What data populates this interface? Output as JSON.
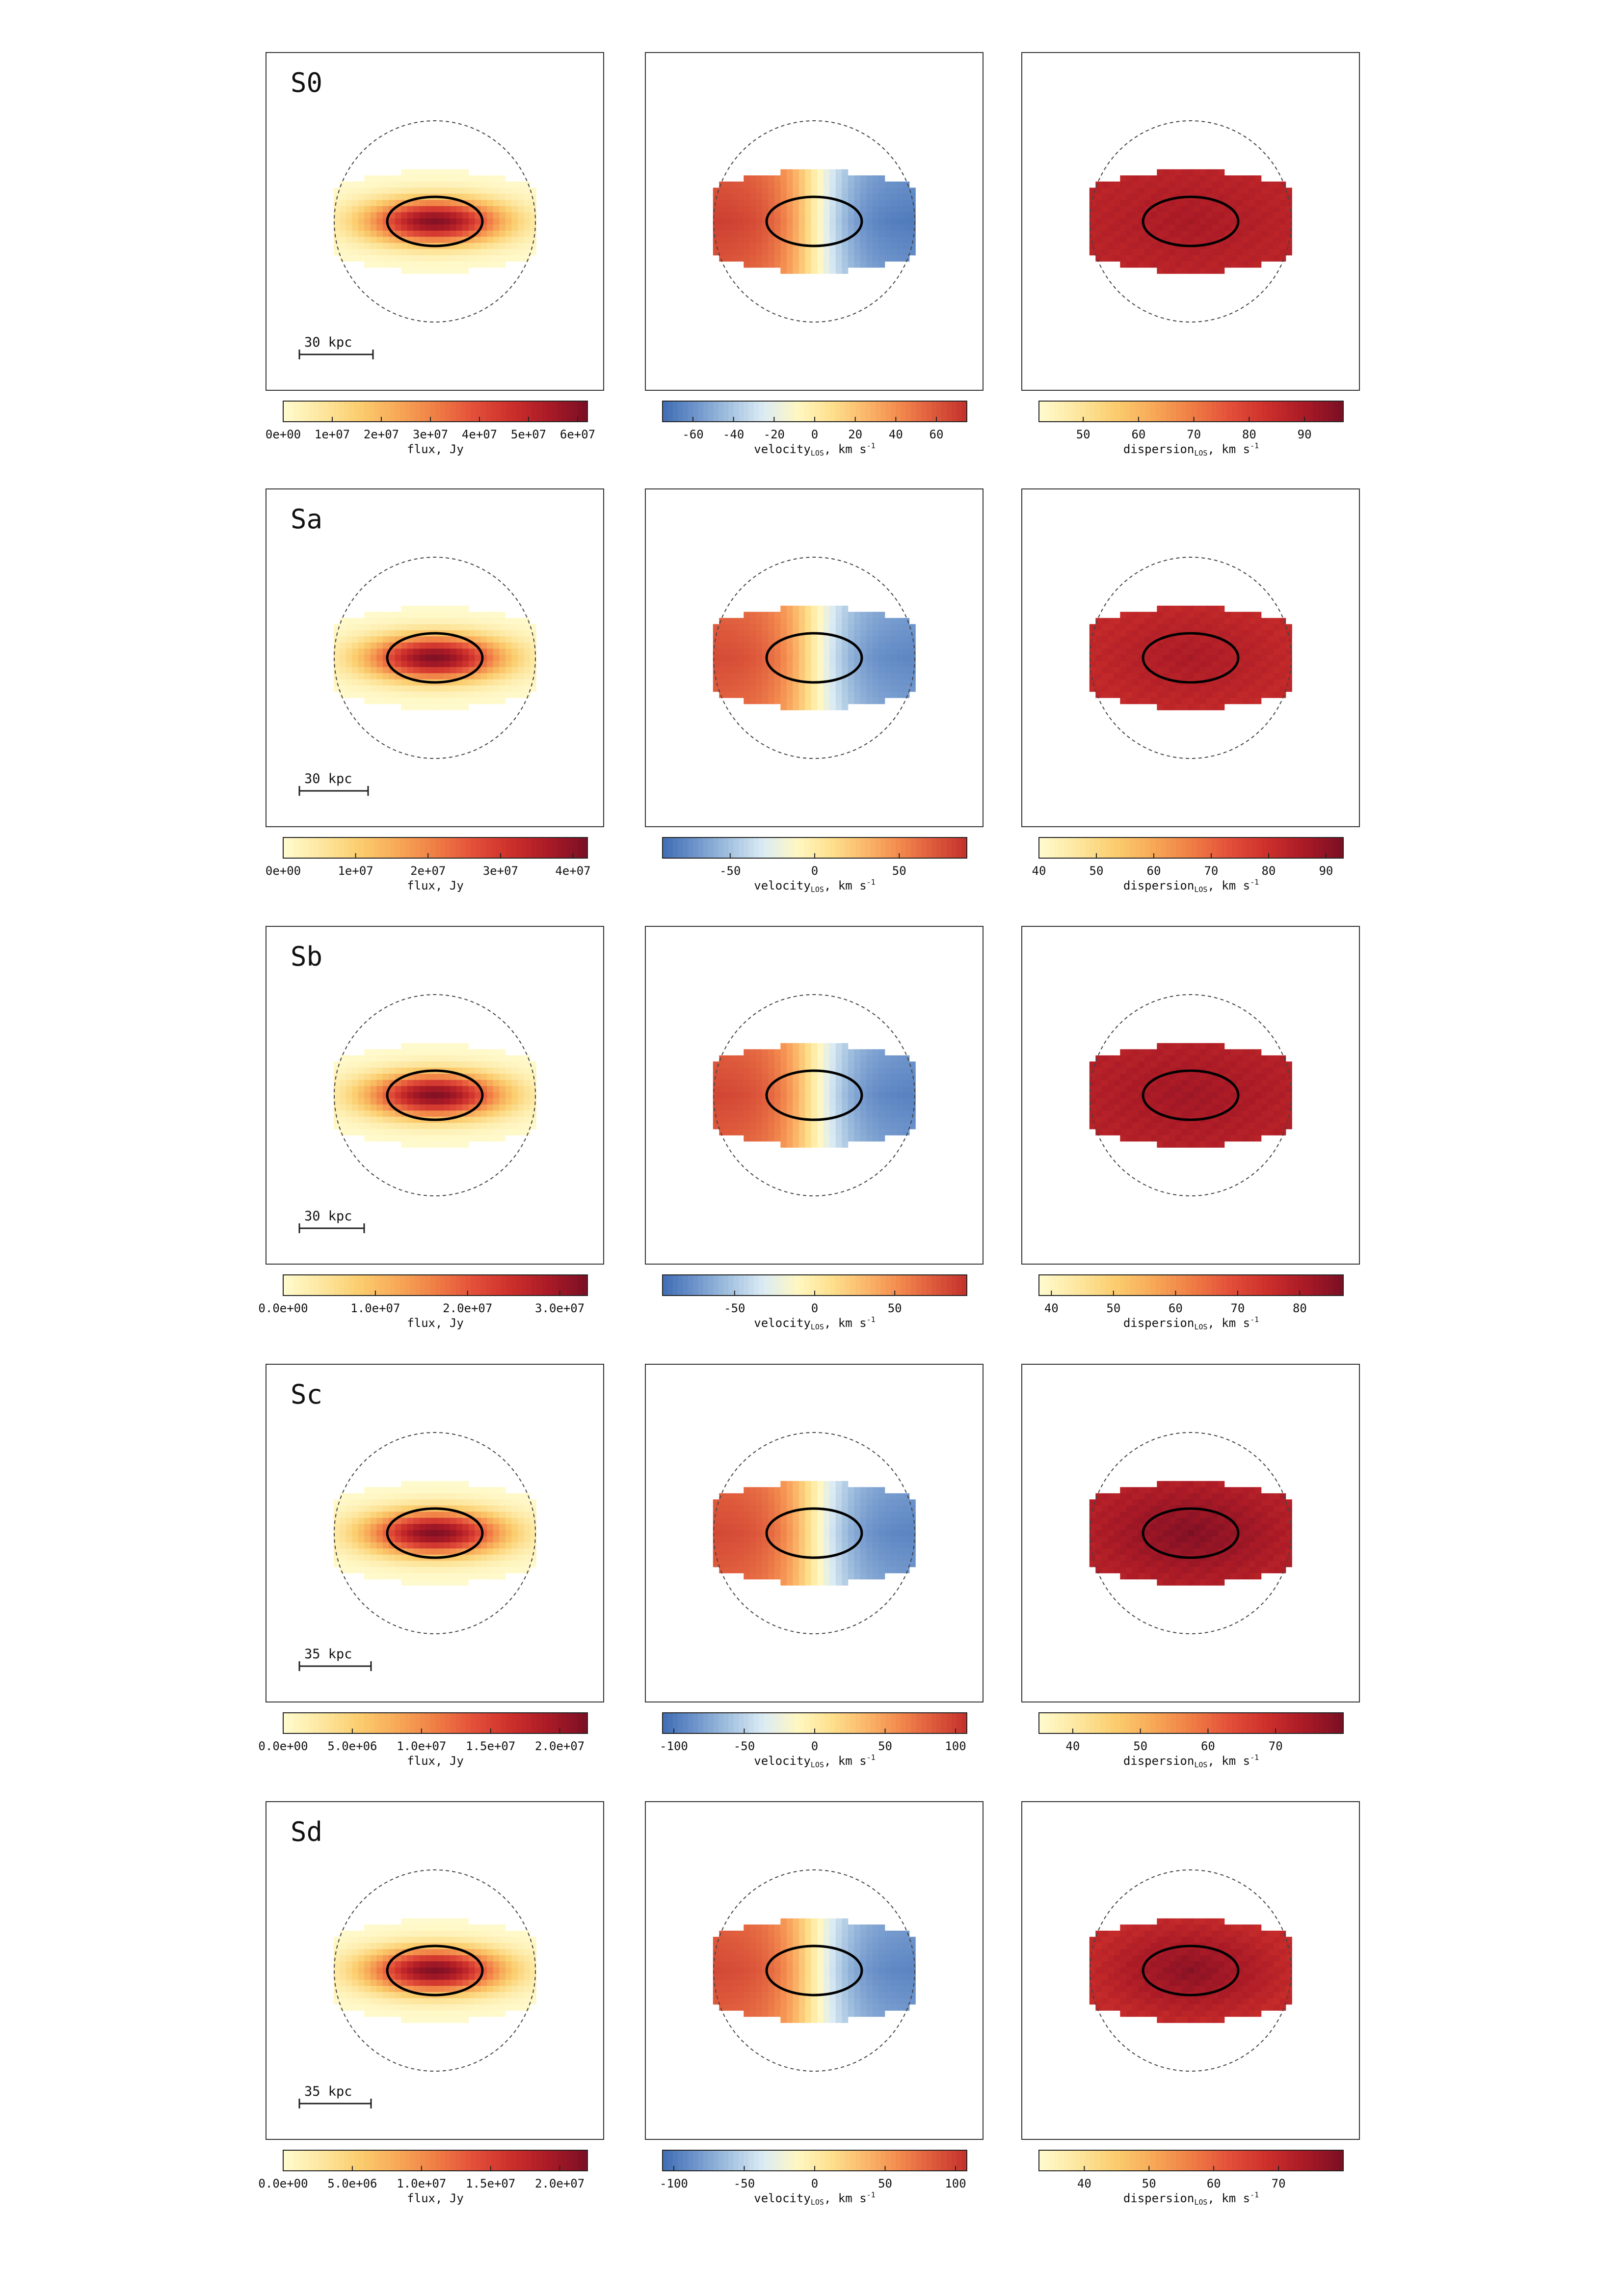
{
  "chart_data": {
    "type": "heatmap",
    "colormaps": {
      "flux": [
        "#fffbcf",
        "#fde7a0",
        "#fbcd6e",
        "#f7a958",
        "#f07e45",
        "#e3503a",
        "#cc2f2b",
        "#a91a26",
        "#7a0f24"
      ],
      "velocity": [
        "#3f6db4",
        "#6f95cb",
        "#a5c3e0",
        "#dcecf4",
        "#fff7c2",
        "#fde08d",
        "#fbb86a",
        "#f38a4e",
        "#de5a3c",
        "#c2312c"
      ],
      "dispersion": [
        "#fffbcf",
        "#fde7a0",
        "#fbcd6e",
        "#f7a958",
        "#f07e45",
        "#e3503a",
        "#cc2f2b",
        "#a91a26",
        "#7a0f24"
      ]
    },
    "rows": [
      {
        "label": "S0",
        "scalebar": "30  kpc",
        "panels": [
          {
            "quantity": "flux",
            "cbar_label": "flux, Jy",
            "vmin": 0,
            "vmax": 62000000.0,
            "ticks": [
              0,
              10000000.0,
              20000000.0,
              30000000.0,
              40000000.0,
              50000000.0,
              60000000.0
            ],
            "tick_labels": [
              "0e+00",
              "1e+07",
              "2e+07",
              "3e+07",
              "4e+07",
              "5e+07",
              "6e+07"
            ],
            "peak": 60000000.0
          },
          {
            "quantity": "velocity",
            "cbar_label": "velocity",
            "cbar_sub": "LOS",
            "cbar_unit": ", km s",
            "cbar_sup": "-1",
            "vmin": -75,
            "vmax": 75,
            "ticks": [
              -60,
              -40,
              -20,
              0,
              20,
              40,
              60
            ],
            "tick_labels": [
              "-60",
              "-40",
              "-20",
              "0",
              "20",
              "40",
              "60"
            ],
            "amplitude": 70
          },
          {
            "quantity": "dispersion",
            "cbar_label": "dispersion",
            "cbar_sub": "LOS",
            "cbar_unit": ", km s",
            "cbar_sup": "-1",
            "vmin": 42,
            "vmax": 97,
            "ticks": [
              50,
              60,
              70,
              80,
              90
            ],
            "tick_labels": [
              "50",
              "60",
              "70",
              "80",
              "90"
            ],
            "center": 90,
            "edge": 87
          }
        ]
      },
      {
        "label": "Sa",
        "scalebar": "30  kpc",
        "panels": [
          {
            "quantity": "flux",
            "cbar_label": "flux, Jy",
            "vmin": 0,
            "vmax": 42000000.0,
            "ticks": [
              0,
              10000000.0,
              20000000.0,
              30000000.0,
              40000000.0
            ],
            "tick_labels": [
              "0e+00",
              "1e+07",
              "2e+07",
              "3e+07",
              "4e+07"
            ],
            "peak": 41000000.0
          },
          {
            "quantity": "velocity",
            "cbar_label": "velocity",
            "cbar_sub": "LOS",
            "cbar_unit": ", km s",
            "cbar_sup": "-1",
            "vmin": -90,
            "vmax": 90,
            "ticks": [
              -50,
              0,
              50
            ],
            "tick_labels": [
              "-50",
              "0",
              "50"
            ],
            "amplitude": 78
          },
          {
            "quantity": "dispersion",
            "cbar_label": "dispersion",
            "cbar_sub": "LOS",
            "cbar_unit": ", km s",
            "cbar_sup": "-1",
            "vmin": 40,
            "vmax": 93,
            "ticks": [
              40,
              50,
              60,
              70,
              80,
              90
            ],
            "tick_labels": [
              "40",
              "50",
              "60",
              "70",
              "80",
              "90"
            ],
            "center": 86,
            "edge": 82
          }
        ]
      },
      {
        "label": "Sb",
        "scalebar": "30  kpc",
        "panels": [
          {
            "quantity": "flux",
            "cbar_label": "flux, Jy",
            "vmin": 0,
            "vmax": 33000000.0,
            "ticks": [
              0,
              10000000.0,
              20000000.0,
              30000000.0
            ],
            "tick_labels": [
              "0.0e+00",
              "1.0e+07",
              "2.0e+07",
              "3.0e+07"
            ],
            "peak": 32000000.0
          },
          {
            "quantity": "velocity",
            "cbar_label": "velocity",
            "cbar_sub": "LOS",
            "cbar_unit": ", km s",
            "cbar_sup": "-1",
            "vmin": -95,
            "vmax": 95,
            "ticks": [
              -50,
              0,
              50
            ],
            "tick_labels": [
              "-50",
              "0",
              "50"
            ],
            "amplitude": 85
          },
          {
            "quantity": "dispersion",
            "cbar_label": "dispersion",
            "cbar_sub": "LOS",
            "cbar_unit": ", km s",
            "cbar_sup": "-1",
            "vmin": 38,
            "vmax": 87,
            "ticks": [
              40,
              50,
              60,
              70,
              80
            ],
            "tick_labels": [
              "40",
              "50",
              "60",
              "70",
              "80"
            ],
            "center": 82,
            "edge": 79
          }
        ]
      },
      {
        "label": "Sc",
        "scalebar": "35  kpc",
        "panels": [
          {
            "quantity": "flux",
            "cbar_label": "flux, Jy",
            "vmin": 0,
            "vmax": 22000000.0,
            "ticks": [
              0,
              5000000.0,
              10000000.0,
              15000000.0,
              20000000.0
            ],
            "tick_labels": [
              "0.0e+00",
              "5.0e+06",
              "1.0e+07",
              "1.5e+07",
              "2.0e+07"
            ],
            "peak": 21500000.0
          },
          {
            "quantity": "velocity",
            "cbar_label": "velocity",
            "cbar_sub": "LOS",
            "cbar_unit": ", km s",
            "cbar_sup": "-1",
            "vmin": -108,
            "vmax": 108,
            "ticks": [
              -100,
              -50,
              0,
              50,
              100
            ],
            "tick_labels": [
              "-100",
              "-50",
              "0",
              "50",
              "100"
            ],
            "amplitude": 95
          },
          {
            "quantity": "dispersion",
            "cbar_label": "dispersion",
            "cbar_sub": "LOS",
            "cbar_unit": ", km s",
            "cbar_sup": "-1",
            "vmin": 35,
            "vmax": 80,
            "ticks": [
              40,
              50,
              60,
              70
            ],
            "tick_labels": [
              "40",
              "50",
              "60",
              "70"
            ],
            "center": 79,
            "edge": 73
          }
        ]
      },
      {
        "label": "Sd",
        "scalebar": "35  kpc",
        "panels": [
          {
            "quantity": "flux",
            "cbar_label": "flux, Jy",
            "vmin": 0,
            "vmax": 22000000.0,
            "ticks": [
              0,
              5000000.0,
              10000000.0,
              15000000.0,
              20000000.0
            ],
            "tick_labels": [
              "0.0e+00",
              "5.0e+06",
              "1.0e+07",
              "1.5e+07",
              "2.0e+07"
            ],
            "peak": 21500000.0
          },
          {
            "quantity": "velocity",
            "cbar_label": "velocity",
            "cbar_sub": "LOS",
            "cbar_unit": ", km s",
            "cbar_sup": "-1",
            "vmin": -108,
            "vmax": 108,
            "ticks": [
              -100,
              -50,
              0,
              50,
              100
            ],
            "tick_labels": [
              "-100",
              "-50",
              "0",
              "50",
              "100"
            ],
            "amplitude": 95
          },
          {
            "quantity": "dispersion",
            "cbar_label": "dispersion",
            "cbar_sub": "LOS",
            "cbar_unit": ", km s",
            "cbar_sup": "-1",
            "vmin": 33,
            "vmax": 80,
            "ticks": [
              40,
              50,
              60,
              70
            ],
            "tick_labels": [
              "40",
              "50",
              "60",
              "70"
            ],
            "center": 78,
            "edge": 70
          }
        ]
      }
    ]
  }
}
